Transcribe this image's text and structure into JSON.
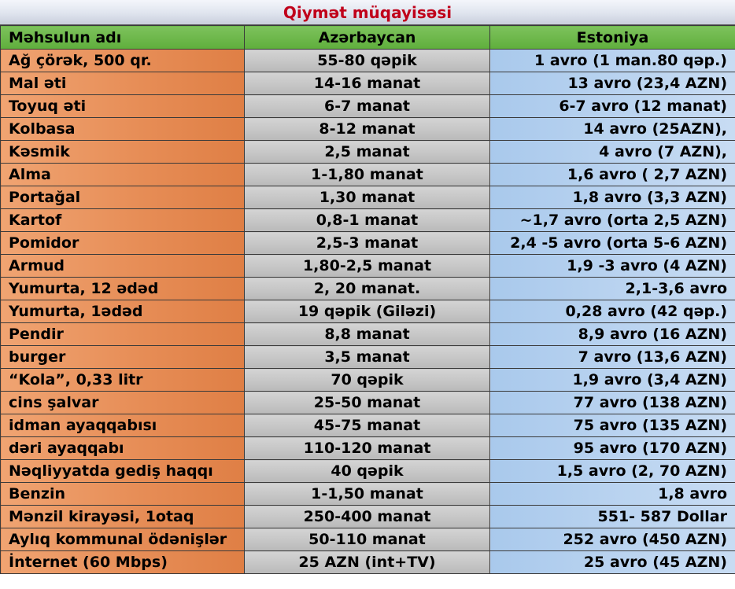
{
  "title": "Qiymət müqayisəsi",
  "columns": [
    "Məhsulun adı",
    "Azərbaycan",
    "Estoniya"
  ],
  "rows": [
    {
      "product": "Ağ çörək, 500 qr.",
      "az": "55-80 qəpik",
      "ee": "1 avro (1 man.80 qəp.)"
    },
    {
      "product": "Mal əti",
      "az": "14-16 manat",
      "ee": "13 avro (23,4 AZN)"
    },
    {
      "product": "Toyuq əti",
      "az": "6-7 manat",
      "ee": "6-7 avro (12 manat)"
    },
    {
      "product": "Kolbasa",
      "az": "8-12 manat",
      "ee": "14 avro (25AZN),"
    },
    {
      "product": "Kəsmik",
      "az": "2,5 manat",
      "ee": "4 avro (7 AZN),"
    },
    {
      "product": "Alma",
      "az": "1-1,80 manat",
      "ee": "1,6 avro ( 2,7 AZN)"
    },
    {
      "product": "Portağal",
      "az": "1,30 manat",
      "ee": "1,8 avro (3,3 AZN)"
    },
    {
      "product": "Kartof",
      "az": "0,8-1 manat",
      "ee": "~1,7 avro (orta 2,5 AZN)"
    },
    {
      "product": "Pomidor",
      "az": "2,5-3 manat",
      "ee": "2,4 -5 avro (orta 5-6 AZN)"
    },
    {
      "product": "Armud",
      "az": "1,80-2,5 manat",
      "ee": "1,9 -3 avro (4 AZN)"
    },
    {
      "product": "Yumurta, 12 ədəd",
      "az": "2, 20 manat.",
      "ee": "2,1-3,6 avro"
    },
    {
      "product": "Yumurta, 1ədəd",
      "az": "19 qəpik (Giləzi)",
      "ee": "0,28 avro (42 qəp.)"
    },
    {
      "product": "Pendir",
      "az": "8,8 manat",
      "ee": "8,9 avro (16 AZN)"
    },
    {
      "product": "burger",
      "az": "3,5 manat",
      "ee": "7 avro (13,6 AZN)"
    },
    {
      "product": "“Kola”, 0,33 litr",
      "az": "70 qəpik",
      "ee": "1,9 avro (3,4 AZN)"
    },
    {
      "product": "cins şalvar",
      "az": "25-50 manat",
      "ee": "77 avro (138 AZN)"
    },
    {
      "product": "idman ayaqqabısı",
      "az": "45-75 manat",
      "ee": "75 avro (135 AZN)"
    },
    {
      "product": "dəri ayaqqabı",
      "az": "110-120 manat",
      "ee": "95 avro (170 AZN)"
    },
    {
      "product": "Nəqliyyatda gediş haqqı",
      "az": "40 qəpik",
      "ee": "1,5 avro (2, 70 AZN)"
    },
    {
      "product": "Benzin",
      "az": "1-1,50 manat",
      "ee": "1,8 avro"
    },
    {
      "product": "Mənzil kirayəsi, 1otaq",
      "az": "250-400 manat",
      "ee": "551- 587 Dollar"
    },
    {
      "product": "Aylıq kommunal ödənişlər",
      "az": "50-110 manat",
      "ee": "252 avro (450 AZN)"
    },
    {
      "product": "İnternet (60 Mbps)",
      "az": "25 AZN (int+TV)",
      "ee": "25 avro (45 AZN)"
    }
  ]
}
